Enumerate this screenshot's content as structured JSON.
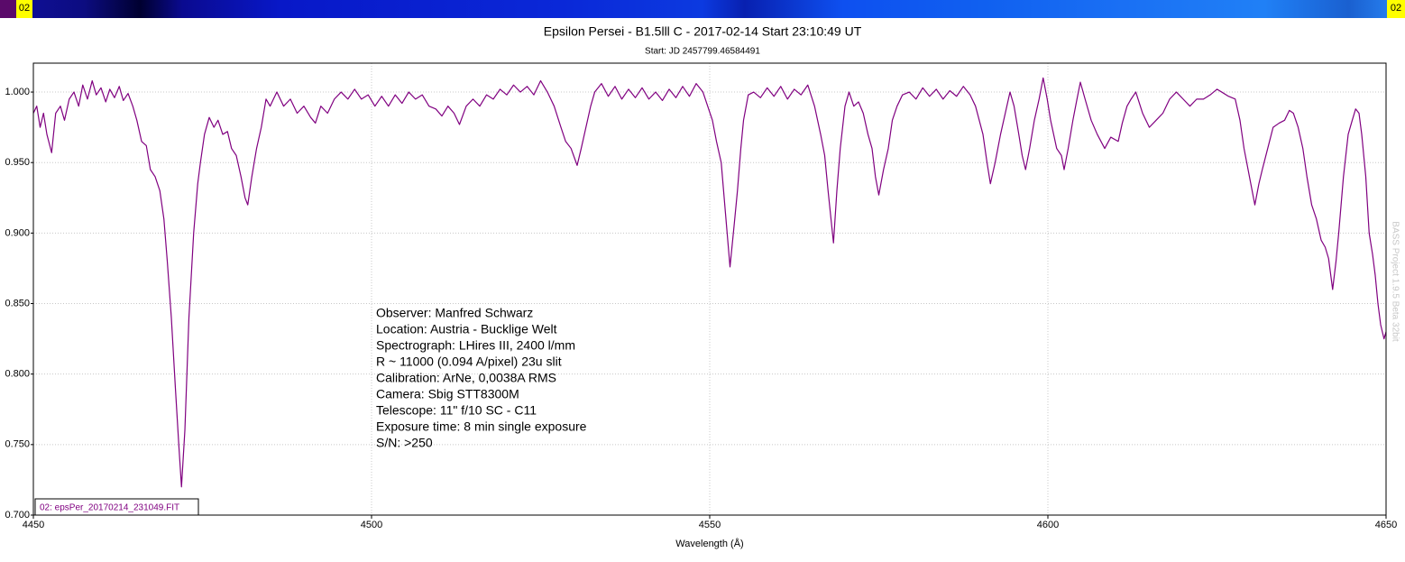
{
  "top_bar_label": "02",
  "chart_data": {
    "type": "line",
    "title": "Epsilon Persei - B1.5lll C - 2017-02-14 Start 23:10:49 UT",
    "subtitle": "Start: JD 2457799.46584491",
    "x_label": "Wavelength (Å)",
    "watermark": "BASS Project 1.9.5 Beta 32bit",
    "annotations": [
      "Observer: Manfred Schwarz",
      "Location: Austria - Bucklige Welt",
      "Spectrograph: LHires III, 2400 l/mm",
      "R ~ 11000 (0.094 A/pixel) 23u slit",
      "Calibration: ArNe, 0,0038A RMS",
      "Camera: Sbig STT8300M",
      "Telescope: 11\" f/10 SC - C11",
      "Exposure time: 8 min single exposure",
      "S/N:  >250"
    ],
    "xlim": [
      4450,
      4650
    ],
    "xticks": [
      4450,
      4500,
      4550,
      4600,
      4650
    ],
    "ylim": [
      0.7,
      1.0205
    ],
    "yticks": [
      {
        "value": 0.7,
        "label": "0.700"
      },
      {
        "value": 0.75,
        "label": "0.750"
      },
      {
        "value": 0.8,
        "label": "0.800"
      },
      {
        "value": 0.85,
        "label": "0.850"
      },
      {
        "value": 0.9,
        "label": "0.900"
      },
      {
        "value": 0.95,
        "label": "0.950"
      },
      {
        "value": 1.0,
        "label": "1.000"
      }
    ],
    "grid": true,
    "legend": "lower left",
    "x": [
      4450,
      4450.5,
      4451,
      4451.5,
      4452,
      4452.7,
      4453.3,
      4454,
      4454.6,
      4455.3,
      4456,
      4456.7,
      4457.3,
      4458,
      4458.7,
      4459.3,
      4460,
      4460.7,
      4461.3,
      4462,
      4462.7,
      4463.3,
      4464,
      4464.7,
      4465.3,
      4466,
      4466.7,
      4467.3,
      4468,
      4468.7,
      4469.3,
      4469.8,
      4470.4,
      4471,
      4471.5,
      4471.9,
      4472.4,
      4473,
      4473.7,
      4474.3,
      4474.7,
      4475.3,
      4476,
      4476.7,
      4477.3,
      4478,
      4478.7,
      4479.3,
      4480,
      4480.7,
      4481.3,
      4481.7,
      4482.3,
      4483,
      4483.7,
      4484.4,
      4485,
      4486,
      4487,
      4488,
      4489,
      4490,
      4491,
      4491.7,
      4492.5,
      4493.5,
      4494.5,
      4495.5,
      4496.5,
      4497.5,
      4498.5,
      4499.5,
      4500.5,
      4501.5,
      4502.5,
      4503.5,
      4504.5,
      4505.5,
      4506.5,
      4507.5,
      4508.5,
      4509.5,
      4510.4,
      4511.3,
      4512.2,
      4513,
      4514,
      4515,
      4516,
      4517,
      4518,
      4519,
      4520,
      4521,
      4522,
      4523,
      4524,
      4525,
      4526,
      4527,
      4528,
      4528.7,
      4529.5,
      4530.4,
      4531,
      4531.7,
      4532.4,
      4533,
      4534,
      4535,
      4536,
      4537,
      4538,
      4539,
      4540,
      4541,
      4542,
      4543,
      4544,
      4545,
      4546,
      4547,
      4548,
      4549,
      4549.7,
      4550.4,
      4551,
      4551.7,
      4552.4,
      4553,
      4553.6,
      4554.1,
      4554.6,
      4555,
      4555.7,
      4556.5,
      4557.5,
      4558.5,
      4559.5,
      4560.5,
      4561.5,
      4562.5,
      4563.5,
      4564.5,
      4565.5,
      4566.4,
      4567,
      4567.5,
      4568.3,
      4568.8,
      4569.3,
      4570,
      4570.6,
      4571.3,
      4572,
      4572.7,
      4573.4,
      4574,
      4574.5,
      4575,
      4575.7,
      4576.4,
      4577,
      4577.7,
      4578.5,
      4579.5,
      4580.5,
      4581.5,
      4582.5,
      4583.5,
      4584.5,
      4585.5,
      4586.5,
      4587.5,
      4588.5,
      4589.3,
      4590.4,
      4591,
      4591.5,
      4592.2,
      4593,
      4593.7,
      4594.4,
      4595,
      4595.7,
      4596.2,
      4596.7,
      4597.3,
      4598,
      4598.7,
      4599.3,
      4599.9,
      4600.4,
      4601.3,
      4602,
      4602.4,
      4603,
      4603.7,
      4604.3,
      4604.8,
      4605.5,
      4606.4,
      4607.3,
      4608.4,
      4609.3,
      4610.4,
      4611,
      4611.7,
      4612.3,
      4613,
      4614,
      4615,
      4616,
      4617,
      4618,
      4619,
      4620,
      4621,
      4622,
      4623,
      4624,
      4625,
      4625.7,
      4626.7,
      4627.7,
      4628.4,
      4629,
      4629.8,
      4630.6,
      4631.2,
      4631.7,
      4632.5,
      4633.3,
      4634.2,
      4635,
      4635.7,
      4636.3,
      4637,
      4637.7,
      4638.3,
      4639,
      4639.7,
      4640.4,
      4641,
      4641.5,
      4642.1,
      4642.6,
      4643,
      4643.7,
      4644.4,
      4645,
      4645.5,
      4646,
      4646.4,
      4647,
      4647.5,
      4648,
      4648.4,
      4648.8,
      4649.2,
      4649.7,
      4650
    ],
    "series": [
      {
        "name": "02: epsPer_20170214_231049.FIT",
        "color": "#800080",
        "values": [
          0.985,
          0.99,
          0.975,
          0.985,
          0.97,
          0.957,
          0.985,
          0.99,
          0.98,
          0.995,
          1.0,
          0.99,
          1.005,
          0.995,
          1.008,
          0.998,
          1.003,
          0.993,
          1.002,
          0.996,
          1.004,
          0.994,
          0.999,
          0.99,
          0.98,
          0.965,
          0.962,
          0.945,
          0.94,
          0.93,
          0.91,
          0.88,
          0.84,
          0.79,
          0.75,
          0.72,
          0.76,
          0.84,
          0.9,
          0.935,
          0.95,
          0.97,
          0.982,
          0.975,
          0.98,
          0.97,
          0.972,
          0.96,
          0.955,
          0.94,
          0.925,
          0.92,
          0.94,
          0.96,
          0.975,
          0.995,
          0.99,
          1.0,
          0.99,
          0.995,
          0.985,
          0.99,
          0.982,
          0.978,
          0.99,
          0.985,
          0.995,
          1.0,
          0.995,
          1.002,
          0.995,
          0.998,
          0.99,
          0.997,
          0.99,
          0.998,
          0.992,
          1.0,
          0.995,
          0.998,
          0.99,
          0.988,
          0.983,
          0.99,
          0.985,
          0.977,
          0.99,
          0.995,
          0.99,
          0.998,
          0.995,
          1.002,
          0.998,
          1.005,
          1.0,
          1.004,
          0.998,
          1.008,
          1.0,
          0.99,
          0.975,
          0.965,
          0.96,
          0.948,
          0.96,
          0.975,
          0.99,
          1.0,
          1.006,
          0.997,
          1.004,
          0.995,
          1.002,
          0.996,
          1.003,
          0.995,
          1.0,
          0.994,
          1.002,
          0.996,
          1.004,
          0.997,
          1.006,
          1.0,
          0.99,
          0.98,
          0.965,
          0.95,
          0.91,
          0.876,
          0.905,
          0.93,
          0.96,
          0.98,
          0.998,
          1.0,
          0.996,
          1.003,
          0.997,
          1.004,
          0.995,
          1.002,
          0.998,
          1.005,
          0.99,
          0.97,
          0.955,
          0.93,
          0.893,
          0.93,
          0.96,
          0.99,
          1.0,
          0.99,
          0.993,
          0.985,
          0.97,
          0.96,
          0.94,
          0.927,
          0.945,
          0.96,
          0.98,
          0.99,
          0.998,
          1.0,
          0.995,
          1.003,
          0.997,
          1.002,
          0.995,
          1.001,
          0.997,
          1.004,
          0.998,
          0.99,
          0.97,
          0.95,
          0.935,
          0.95,
          0.97,
          0.985,
          1.0,
          0.99,
          0.97,
          0.955,
          0.945,
          0.96,
          0.98,
          0.995,
          1.01,
          0.995,
          0.98,
          0.96,
          0.955,
          0.945,
          0.96,
          0.98,
          0.995,
          1.007,
          0.995,
          0.98,
          0.97,
          0.96,
          0.968,
          0.965,
          0.978,
          0.99,
          0.995,
          1.0,
          0.985,
          0.975,
          0.98,
          0.985,
          0.995,
          1.0,
          0.995,
          0.99,
          0.995,
          0.995,
          0.998,
          1.002,
          1.0,
          0.997,
          0.995,
          0.98,
          0.96,
          0.94,
          0.92,
          0.935,
          0.945,
          0.96,
          0.975,
          0.978,
          0.98,
          0.987,
          0.985,
          0.975,
          0.96,
          0.94,
          0.92,
          0.91,
          0.895,
          0.89,
          0.882,
          0.86,
          0.88,
          0.9,
          0.94,
          0.97,
          0.98,
          0.988,
          0.985,
          0.97,
          0.94,
          0.9,
          0.885,
          0.87,
          0.85,
          0.835,
          0.825,
          0.83
        ]
      }
    ]
  }
}
